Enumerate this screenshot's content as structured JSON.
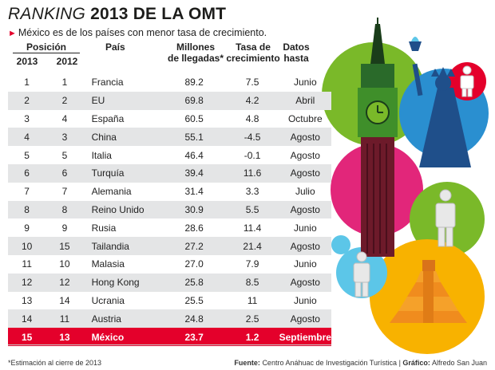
{
  "header": {
    "title_italic": "RANKING",
    "title_bold": "2013 DE LA OMT",
    "subtitle": "México es de los países con menor tasa de crecimiento."
  },
  "columns": {
    "position": "Posición",
    "y2013": "2013",
    "y2012": "2012",
    "pais": "País",
    "llegadas_l1": "Millones",
    "llegadas_l2": "de llegadas*",
    "tasa_l1": "Tasa de",
    "tasa_l2": "crecimiento",
    "datos_l1": "Datos",
    "datos_l2": "hasta"
  },
  "rows": [
    {
      "p2013": "1",
      "p2012": "1",
      "pais": "Francia",
      "llegadas": "89.2",
      "tasa": "7.5",
      "hasta": "Junio"
    },
    {
      "p2013": "2",
      "p2012": "2",
      "pais": "EU",
      "llegadas": "69.8",
      "tasa": "4.2",
      "hasta": "Abril"
    },
    {
      "p2013": "3",
      "p2012": "4",
      "pais": "España",
      "llegadas": "60.5",
      "tasa": "4.8",
      "hasta": "Octubre"
    },
    {
      "p2013": "4",
      "p2012": "3",
      "pais": "China",
      "llegadas": "55.1",
      "tasa": "-4.5",
      "hasta": "Agosto"
    },
    {
      "p2013": "5",
      "p2012": "5",
      "pais": "Italia",
      "llegadas": "46.4",
      "tasa": "-0.1",
      "hasta": "Agosto"
    },
    {
      "p2013": "6",
      "p2012": "6",
      "pais": "Turquía",
      "llegadas": "39.4",
      "tasa": "11.6",
      "hasta": "Agosto"
    },
    {
      "p2013": "7",
      "p2012": "7",
      "pais": "Alemania",
      "llegadas": "31.4",
      "tasa": "3.3",
      "hasta": "Julio"
    },
    {
      "p2013": "8",
      "p2012": "8",
      "pais": "Reino Unido",
      "llegadas": "30.9",
      "tasa": "5.5",
      "hasta": "Agosto"
    },
    {
      "p2013": "9",
      "p2012": "9",
      "pais": "Rusia",
      "llegadas": "28.6",
      "tasa": "11.4",
      "hasta": "Junio"
    },
    {
      "p2013": "10",
      "p2012": "15",
      "pais": "Tailandia",
      "llegadas": "27.2",
      "tasa": "21.4",
      "hasta": "Agosto"
    },
    {
      "p2013": "11",
      "p2012": "10",
      "pais": "Malasia",
      "llegadas": "27.0",
      "tasa": "7.9",
      "hasta": "Junio"
    },
    {
      "p2013": "12",
      "p2012": "12",
      "pais": "Hong Kong",
      "llegadas": "25.8",
      "tasa": "8.5",
      "hasta": "Agosto"
    },
    {
      "p2013": "13",
      "p2012": "14",
      "pais": "Ucrania",
      "llegadas": "25.5",
      "tasa": "11",
      "hasta": "Junio"
    },
    {
      "p2013": "14",
      "p2012": "11",
      "pais": "Austria",
      "llegadas": "24.8",
      "tasa": "2.5",
      "hasta": "Agosto"
    },
    {
      "p2013": "15",
      "p2012": "13",
      "pais": "México",
      "llegadas": "23.7",
      "tasa": "1.2",
      "hasta": "Septiembre"
    }
  ],
  "highlight_country": "México",
  "colors": {
    "highlight": "#e4002b",
    "stripe": "#e4e5e6",
    "green": "#7ab929",
    "magenta": "#e2267a",
    "blue": "#2a8fd0",
    "light_blue": "#5cc6e8",
    "yellow": "#f8b200",
    "orange": "#f08c1e"
  },
  "footer": {
    "note": "*Estimación al cierre de 2013",
    "source_label": "Fuente:",
    "source": "Centro Anáhuac de Investigación Turística",
    "separator": "|",
    "credit_label": "Gráfico:",
    "credit": "Alfredo San Juan"
  }
}
